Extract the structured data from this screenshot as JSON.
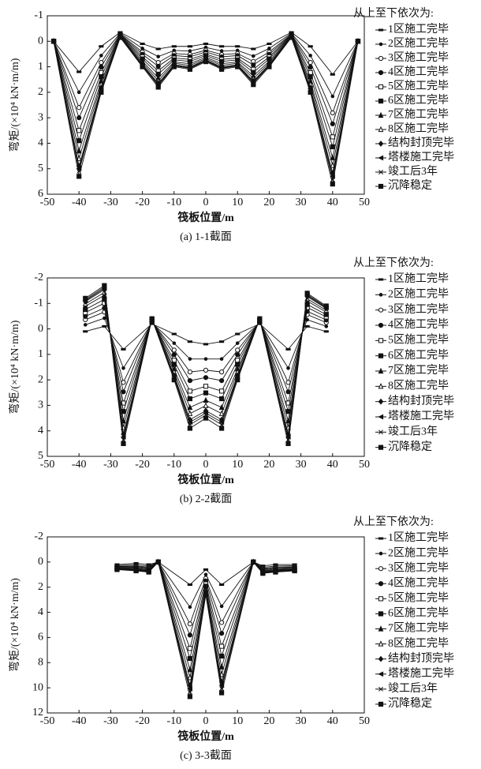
{
  "chart_data": [
    {
      "type": "line",
      "caption": "(a) 1-1截面",
      "x_label": "筏板位置/m",
      "y_label": "弯矩/(×10⁴ kN·m/m)",
      "legend_title": "从上至下依次为:",
      "y_inverted": true,
      "xlim": [
        -50,
        50
      ],
      "xticks": [
        -50,
        -40,
        -30,
        -20,
        -10,
        0,
        10,
        20,
        30,
        40,
        50
      ],
      "ylim": [
        -1,
        6
      ],
      "yticks": [
        -1,
        0,
        1,
        2,
        3,
        4,
        5,
        6
      ],
      "x": [
        -48,
        -40,
        -33,
        -27,
        -20,
        -15,
        -10,
        -5,
        0,
        5,
        10,
        15,
        20,
        27,
        33,
        40,
        48
      ],
      "series": [
        {
          "name": "1区施工完毕",
          "color": "#111",
          "values": [
            0,
            1.2,
            0.2,
            -0.35,
            0.1,
            0.3,
            0.2,
            0.2,
            0.1,
            0.2,
            0.2,
            0.3,
            0.1,
            -0.35,
            0.2,
            1.3,
            0
          ]
        },
        {
          "name": "2区施工完毕",
          "color": "#111",
          "values": [
            0,
            2.0,
            0.56,
            -0.31,
            0.28,
            0.6,
            0.36,
            0.38,
            0.24,
            0.38,
            0.36,
            0.58,
            0.28,
            -0.31,
            0.56,
            2.16,
            0
          ]
        },
        {
          "name": "3区施工完毕",
          "color": "#111",
          "values": [
            0,
            2.6,
            0.83,
            -0.28,
            0.42,
            0.83,
            0.48,
            0.52,
            0.35,
            0.52,
            0.48,
            0.79,
            0.42,
            -0.28,
            0.83,
            2.81,
            0
          ]
        },
        {
          "name": "4区施工完毕",
          "color": "#111",
          "values": [
            0,
            3.0,
            1.01,
            -0.26,
            0.51,
            0.98,
            0.56,
            0.61,
            0.42,
            0.61,
            0.56,
            0.93,
            0.51,
            -0.26,
            1.01,
            3.24,
            0
          ]
        },
        {
          "name": "5区施工完毕",
          "color": "#111",
          "values": [
            0,
            3.5,
            1.23,
            -0.24,
            0.61,
            1.16,
            0.66,
            0.71,
            0.5,
            0.71,
            0.66,
            1.1,
            0.61,
            -0.24,
            1.23,
            3.75,
            0
          ]
        },
        {
          "name": "6区施工完毕",
          "color": "#111",
          "values": [
            0,
            3.9,
            1.39,
            -0.22,
            0.69,
            1.29,
            0.73,
            0.79,
            0.56,
            0.79,
            0.73,
            1.22,
            0.69,
            -0.22,
            1.39,
            4.14,
            0
          ]
        },
        {
          "name": "7区施工完毕",
          "color": "#111",
          "values": [
            0,
            4.3,
            1.57,
            -0.2,
            0.78,
            1.44,
            0.81,
            0.88,
            0.63,
            0.88,
            0.81,
            1.36,
            0.78,
            -0.2,
            1.57,
            4.57,
            0
          ]
        },
        {
          "name": "8区施工完毕",
          "color": "#111",
          "values": [
            0,
            4.6,
            1.69,
            -0.18,
            0.85,
            1.55,
            0.86,
            0.95,
            0.68,
            0.95,
            0.86,
            1.46,
            0.85,
            -0.18,
            1.69,
            4.87,
            0
          ]
        },
        {
          "name": "结构封顶完毕",
          "color": "#111",
          "values": [
            0,
            4.9,
            1.82,
            -0.17,
            0.91,
            1.65,
            0.92,
            1.01,
            0.73,
            1.01,
            0.92,
            1.56,
            0.91,
            -0.17,
            1.82,
            5.17,
            0
          ]
        },
        {
          "name": "塔楼施工完毕",
          "color": "#111",
          "values": [
            0,
            5.0,
            1.87,
            -0.16,
            0.94,
            1.7,
            0.94,
            1.04,
            0.75,
            1.04,
            0.94,
            1.6,
            0.94,
            -0.16,
            1.87,
            5.3,
            0
          ]
        },
        {
          "name": "竣工后3年",
          "color": "#111",
          "values": [
            0,
            5.1,
            1.93,
            -0.16,
            0.96,
            1.74,
            0.97,
            1.06,
            0.77,
            1.06,
            0.97,
            1.64,
            0.96,
            -0.16,
            1.93,
            5.43,
            0
          ]
        },
        {
          "name": "沉降稳定",
          "color": "#111",
          "values": [
            0,
            5.3,
            2.0,
            -0.15,
            1.0,
            1.8,
            1.0,
            1.1,
            0.8,
            1.1,
            1.0,
            1.7,
            1.0,
            -0.15,
            2.0,
            5.6,
            0
          ]
        }
      ]
    },
    {
      "type": "line",
      "caption": "(b) 2-2截面",
      "x_label": "筏板位置/m",
      "y_label": "弯矩/(×10⁴ kN·m/m)",
      "legend_title": "从上至下依次为:",
      "y_inverted": true,
      "xlim": [
        -50,
        50
      ],
      "xticks": [
        -50,
        -40,
        -30,
        -20,
        -10,
        0,
        10,
        20,
        30,
        40,
        50
      ],
      "ylim": [
        -2,
        5
      ],
      "yticks": [
        -2,
        -1,
        0,
        1,
        2,
        3,
        4,
        5
      ],
      "x": [
        -38,
        -32,
        -26,
        -17,
        -10,
        -5,
        0,
        5,
        10,
        17,
        26,
        32,
        38
      ],
      "series": [
        {
          "name": "1区施工完毕",
          "color": "#111",
          "values": [
            0.1,
            -0.1,
            0.8,
            -0.2,
            0.2,
            0.5,
            0.6,
            0.5,
            0.2,
            -0.2,
            0.8,
            -0.1,
            0.1
          ]
        },
        {
          "name": "2区施工完毕",
          "color": "#111",
          "values": [
            -0.16,
            -0.42,
            1.54,
            -0.24,
            0.56,
            1.18,
            1.18,
            1.18,
            0.56,
            -0.24,
            1.54,
            -0.36,
            -0.1
          ]
        },
        {
          "name": "3区施工完毕",
          "color": "#111",
          "values": [
            -0.36,
            -0.66,
            2.1,
            -0.27,
            0.83,
            1.69,
            1.62,
            1.69,
            0.83,
            -0.27,
            2.1,
            -0.56,
            -0.25
          ]
        },
        {
          "name": "4区施工完毕",
          "color": "#111",
          "values": [
            -0.49,
            -0.82,
            2.47,
            -0.29,
            1.01,
            2.03,
            1.91,
            2.03,
            1.01,
            -0.29,
            2.47,
            -0.69,
            -0.35
          ]
        },
        {
          "name": "5区施工完毕",
          "color": "#111",
          "values": [
            -0.64,
            -1.01,
            2.91,
            -0.31,
            1.23,
            2.44,
            2.25,
            2.44,
            1.23,
            -0.31,
            2.91,
            -0.84,
            -0.47
          ]
        },
        {
          "name": "6区施工完毕",
          "color": "#111",
          "values": [
            -0.76,
            -1.16,
            3.24,
            -0.33,
            1.39,
            2.74,
            2.51,
            2.74,
            1.39,
            -0.33,
            3.24,
            -0.96,
            -0.56
          ]
        },
        {
          "name": "7区施工完毕",
          "color": "#111",
          "values": [
            -0.89,
            -1.32,
            3.61,
            -0.35,
            1.57,
            3.08,
            2.8,
            3.08,
            1.57,
            -0.35,
            3.61,
            -1.09,
            -0.66
          ]
        },
        {
          "name": "8区施工完毕",
          "color": "#111",
          "values": [
            -0.98,
            -1.43,
            3.87,
            -0.37,
            1.69,
            3.32,
            3.01,
            3.32,
            1.69,
            -0.37,
            3.87,
            -1.18,
            -0.73
          ]
        },
        {
          "name": "结构封顶完毕",
          "color": "#111",
          "values": [
            -1.07,
            -1.54,
            4.13,
            -0.38,
            1.82,
            3.56,
            3.21,
            3.56,
            1.82,
            -0.38,
            4.13,
            -1.27,
            -0.8
          ]
        },
        {
          "name": "塔楼施工完毕",
          "color": "#111",
          "values": [
            -1.11,
            -1.59,
            4.24,
            -0.39,
            1.87,
            3.66,
            3.3,
            3.66,
            1.87,
            -0.39,
            4.24,
            -1.31,
            -0.83
          ]
        },
        {
          "name": "竣工后3年",
          "color": "#111",
          "values": [
            -1.15,
            -1.64,
            4.35,
            -0.39,
            1.93,
            3.76,
            3.38,
            3.76,
            1.93,
            -0.39,
            4.35,
            -1.35,
            -0.86
          ]
        },
        {
          "name": "沉降稳定",
          "color": "#111",
          "values": [
            -1.2,
            -1.7,
            4.5,
            -0.4,
            2.0,
            3.9,
            3.5,
            3.9,
            2.0,
            -0.4,
            4.5,
            -1.4,
            -0.9
          ]
        }
      ]
    },
    {
      "type": "line",
      "caption": "(c) 3-3截面",
      "x_label": "筏板位置/m",
      "y_label": "弯矩/(×10⁴ kN·m/m)",
      "legend_title": "从上至下依次为:",
      "y_inverted": true,
      "xlim": [
        -50,
        50
      ],
      "xticks": [
        -50,
        -40,
        -30,
        -20,
        -10,
        0,
        10,
        20,
        30,
        40,
        50
      ],
      "ylim": [
        -2,
        12
      ],
      "yticks": [
        -2,
        0,
        2,
        4,
        6,
        8,
        10,
        12
      ],
      "x": [
        -28,
        -22,
        -18,
        -15,
        -5,
        0,
        5,
        15,
        18,
        22,
        28
      ],
      "series": [
        {
          "name": "1区施工完毕",
          "color": "#111",
          "values": [
            0.2,
            0.1,
            0.2,
            0,
            1.8,
            0.6,
            1.8,
            0,
            0.3,
            0.2,
            0.2
          ]
        },
        {
          "name": "2区施工完毕",
          "color": "#111",
          "values": [
            0.28,
            0.22,
            0.32,
            0,
            3.58,
            1.0,
            3.52,
            0,
            0.42,
            0.32,
            0.3
          ]
        },
        {
          "name": "3区施工完毕",
          "color": "#111",
          "values": [
            0.34,
            0.31,
            0.41,
            0,
            4.92,
            1.3,
            4.81,
            0,
            0.51,
            0.41,
            0.38
          ]
        },
        {
          "name": "4区施工完毕",
          "color": "#111",
          "values": [
            0.38,
            0.37,
            0.47,
            0,
            5.81,
            1.5,
            5.67,
            0,
            0.57,
            0.47,
            0.43
          ]
        },
        {
          "name": "5区施工完毕",
          "color": "#111",
          "values": [
            0.43,
            0.44,
            0.54,
            0,
            6.87,
            1.74,
            6.7,
            0,
            0.64,
            0.54,
            0.49
          ]
        },
        {
          "name": "6区施工完毕",
          "color": "#111",
          "values": [
            0.46,
            0.5,
            0.6,
            0,
            7.67,
            1.92,
            7.48,
            0,
            0.7,
            0.6,
            0.53
          ]
        },
        {
          "name": "7区施工完毕",
          "color": "#111",
          "values": [
            0.5,
            0.56,
            0.66,
            0,
            8.56,
            2.12,
            8.34,
            0,
            0.76,
            0.66,
            0.58
          ]
        },
        {
          "name": "8区施工完毕",
          "color": "#111",
          "values": [
            0.53,
            0.6,
            0.7,
            0,
            9.19,
            2.26,
            8.94,
            0,
            0.8,
            0.7,
            0.62
          ]
        },
        {
          "name": "结构封顶完毕",
          "color": "#111",
          "values": [
            0.56,
            0.64,
            0.74,
            0,
            9.81,
            2.4,
            9.54,
            0,
            0.84,
            0.74,
            0.65
          ]
        },
        {
          "name": "塔楼施工完毕",
          "color": "#111",
          "values": [
            0.57,
            0.66,
            0.76,
            0,
            10.08,
            2.46,
            9.8,
            0,
            0.86,
            0.76,
            0.67
          ]
        },
        {
          "name": "竣工后3年",
          "color": "#111",
          "values": [
            0.58,
            0.68,
            0.78,
            0,
            10.34,
            2.52,
            10.06,
            0,
            0.88,
            0.78,
            0.68
          ]
        },
        {
          "name": "沉降稳定",
          "color": "#111",
          "values": [
            0.6,
            0.7,
            0.8,
            0,
            10.7,
            2.6,
            10.4,
            0,
            0.9,
            0.8,
            0.7
          ]
        }
      ]
    }
  ]
}
